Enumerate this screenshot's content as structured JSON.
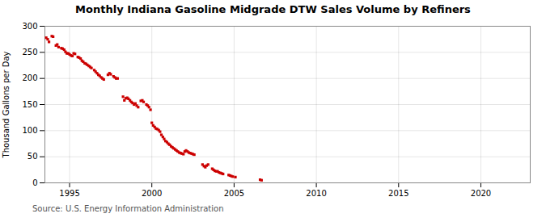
{
  "chart_data": {
    "type": "scatter",
    "title": "Monthly Indiana Gasoline Midgrade DTW Sales Volume by Refiners",
    "ylabel": "Thousand Gallons per Day",
    "source": "Source: U.S. Energy Information Administration",
    "color": "#cc0000",
    "marker": "square",
    "grid": true,
    "xlim": [
      1993.5,
      2023
    ],
    "ylim": [
      0,
      300
    ],
    "xticks": [
      1995,
      2000,
      2005,
      2010,
      2015,
      2020
    ],
    "yticks": [
      0,
      50,
      100,
      150,
      200,
      250,
      300
    ],
    "x": [
      1993.58,
      1993.67,
      1993.75,
      1993.92,
      1994.0,
      1994.17,
      1994.25,
      1994.33,
      1994.5,
      1994.58,
      1994.67,
      1994.75,
      1994.83,
      1994.92,
      1995.0,
      1995.08,
      1995.17,
      1995.25,
      1995.33,
      1995.5,
      1995.58,
      1995.67,
      1995.75,
      1995.83,
      1995.92,
      1996.0,
      1996.08,
      1996.17,
      1996.25,
      1996.33,
      1996.5,
      1996.58,
      1996.67,
      1996.75,
      1996.83,
      1996.92,
      1997.0,
      1997.08,
      1997.33,
      1997.42,
      1997.5,
      1997.67,
      1997.75,
      1997.83,
      1997.92,
      1998.25,
      1998.33,
      1998.42,
      1998.5,
      1998.58,
      1998.67,
      1998.75,
      1998.83,
      1998.92,
      1999.0,
      1999.08,
      1999.17,
      1999.33,
      1999.42,
      1999.5,
      1999.67,
      1999.75,
      1999.83,
      1999.92,
      2000.0,
      2000.08,
      2000.17,
      2000.25,
      2000.33,
      2000.42,
      2000.5,
      2000.58,
      2000.67,
      2000.75,
      2000.83,
      2000.92,
      2001.0,
      2001.08,
      2001.17,
      2001.25,
      2001.33,
      2001.42,
      2001.5,
      2001.58,
      2001.67,
      2001.75,
      2001.83,
      2001.92,
      2002.0,
      2002.08,
      2002.17,
      2002.25,
      2002.33,
      2002.42,
      2002.5,
      2002.58,
      2003.08,
      2003.17,
      2003.25,
      2003.33,
      2003.42,
      2003.67,
      2003.75,
      2003.83,
      2003.92,
      2004.0,
      2004.08,
      2004.17,
      2004.25,
      2004.33,
      2004.67,
      2004.75,
      2004.83,
      2004.92,
      2005.08,
      2006.58,
      2006.67
    ],
    "values": [
      278,
      275,
      270,
      281,
      280,
      263,
      265,
      260,
      258,
      257,
      255,
      251,
      248,
      248,
      246,
      244,
      243,
      248,
      247,
      241,
      240,
      238,
      234,
      232,
      229,
      228,
      226,
      224,
      222,
      220,
      216,
      213,
      210,
      207,
      205,
      202,
      200,
      198,
      207,
      210,
      208,
      204,
      202,
      200,
      200,
      165,
      158,
      162,
      163,
      161,
      158,
      155,
      153,
      150,
      152,
      148,
      145,
      157,
      158,
      155,
      150,
      148,
      145,
      140,
      115,
      110,
      107,
      104,
      103,
      101,
      98,
      92,
      88,
      84,
      80,
      78,
      75,
      73,
      70,
      68,
      66,
      64,
      62,
      60,
      58,
      57,
      56,
      55,
      60,
      62,
      60,
      58,
      57,
      56,
      55,
      54,
      35,
      32,
      30,
      33,
      35,
      27,
      25,
      23,
      22,
      22,
      20,
      19,
      18,
      17,
      15,
      14,
      13,
      12,
      11,
      6,
      5
    ]
  }
}
